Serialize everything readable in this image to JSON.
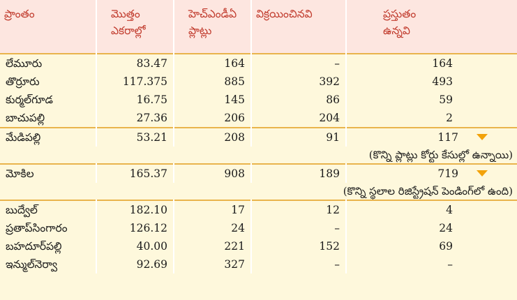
{
  "headers": {
    "area": "ప్రాంతం",
    "total_acres": [
      "మొత్తం",
      "ఎకరాల్లో"
    ],
    "hmda_plots": [
      "హెచ్ఎండీఏ",
      "ప్లాట్లు"
    ],
    "sold": "విక్రయించినవి",
    "currently_available": [
      "ప్రస్తుతం",
      "ఉన్నవి"
    ]
  },
  "rows": [
    {
      "area": "లేమూరు",
      "acres": "83.47",
      "plots": "164",
      "sold": "–",
      "current": "164"
    },
    {
      "area": "తొర్రూరు",
      "acres": "117.375",
      "plots": "885",
      "sold": "392",
      "current": "493"
    },
    {
      "area": "కుర్మల్‌గూడ",
      "acres": "16.75",
      "plots": "145",
      "sold": "86",
      "current": "59"
    },
    {
      "area": "బాచుపల్లి",
      "acres": "27.36",
      "plots": "206",
      "sold": "204",
      "current": "2"
    },
    {
      "area": "మేడిపల్లి",
      "acres": "53.21",
      "plots": "208",
      "sold": "91",
      "current": "117",
      "note": "(కొన్ని ప్లాట్లు కోర్టు కేసుల్లో ఉన్నాయి)"
    },
    {
      "area": "మోకిల",
      "acres": "165.37",
      "plots": "908",
      "sold": "189",
      "current": "719",
      "note": "(కొన్ని స్థలాల రిజిస్ట్రేషన్ పెండింగ్‌లో ఉంది)"
    },
    {
      "area": "బుద్వేల్",
      "acres": "182.10",
      "plots": "17",
      "sold": "12",
      "current": "4"
    },
    {
      "area": "ప్రతాప్‌సింగారం",
      "acres": "126.12",
      "plots": "24",
      "sold": "–",
      "current": "24"
    },
    {
      "area": "బహదూర్‌పల్లి",
      "acres": "40.00",
      "plots": "221",
      "sold": "152",
      "current": "69"
    },
    {
      "area": "ఇన్ముల్‌నెర్వా",
      "acres": "92.69",
      "plots": "327",
      "sold": "–",
      "current": "–"
    }
  ],
  "colors": {
    "background": "#fef8dc",
    "header_bg": "#fde6e0",
    "header_text": "#c0392b",
    "separator": "#e9b44c",
    "marker": "#f2a20a"
  }
}
